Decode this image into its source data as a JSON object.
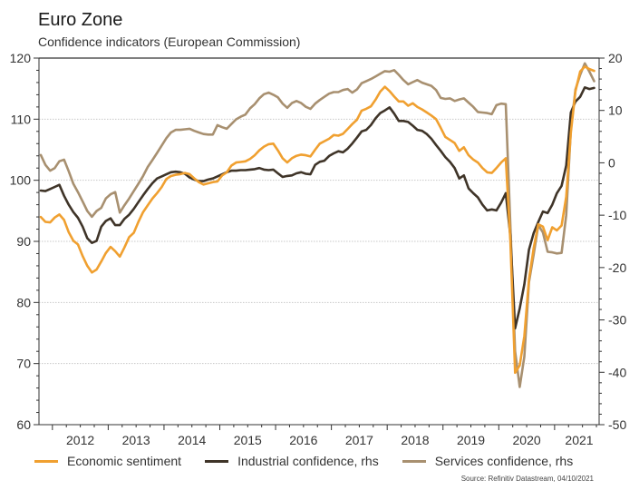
{
  "chart_data": {
    "type": "line",
    "title": "Euro Zone",
    "subtitle": "Confidence indicators (European Commission)",
    "frequency": "monthly",
    "start_month": "2011-10",
    "end_month": "2021-09",
    "x_tick_labels": [
      "2012",
      "2013",
      "2014",
      "2015",
      "2016",
      "2017",
      "2018",
      "2019",
      "2020",
      "2021"
    ],
    "y_left": {
      "ylim": [
        60,
        120
      ],
      "ticks": [
        60,
        70,
        80,
        90,
        100,
        110,
        120
      ]
    },
    "y_right": {
      "ylim": [
        -50,
        20
      ],
      "ticks": [
        -50,
        -40,
        -30,
        -20,
        -10,
        0,
        10,
        20
      ]
    },
    "grid": "horizontal dotted",
    "legend_position": "bottom",
    "source": "Source: Refinitiv Datastream, 04/10/2021",
    "series": [
      {
        "name": "Economic sentiment",
        "axis": "left",
        "color": "#F0A030",
        "values": [
          94.0,
          93.2,
          93.1,
          93.9,
          94.4,
          93.5,
          91.5,
          90.1,
          89.5,
          87.6,
          86.0,
          84.9,
          85.4,
          86.7,
          88.1,
          89.1,
          88.4,
          87.5,
          89.0,
          90.7,
          91.4,
          93.2,
          94.8,
          95.9,
          97.0,
          97.9,
          98.9,
          100.2,
          100.7,
          100.9,
          101.0,
          101.2,
          101.0,
          100.3,
          99.7,
          99.3,
          99.5,
          99.7,
          99.8,
          100.8,
          101.3,
          102.4,
          102.9,
          103.0,
          103.1,
          103.5,
          104.1,
          104.9,
          105.5,
          105.9,
          106.0,
          104.9,
          103.6,
          102.9,
          103.6,
          104.0,
          104.2,
          104.1,
          103.9,
          105.0,
          106.0,
          106.4,
          106.8,
          107.4,
          107.3,
          107.6,
          108.4,
          109.2,
          109.9,
          111.4,
          111.7,
          112.1,
          113.2,
          114.5,
          115.3,
          114.6,
          113.7,
          112.9,
          112.9,
          112.2,
          112.6,
          112.0,
          111.6,
          111.1,
          110.6,
          110.0,
          108.6,
          107.1,
          106.6,
          106.1,
          104.8,
          105.4,
          104.1,
          103.4,
          102.9,
          102.0,
          101.3,
          101.2,
          102.0,
          102.9,
          103.6,
          90.0,
          68.5,
          69.7,
          74.5,
          83.8,
          88.9,
          92.8,
          92.4,
          90.2,
          92.3,
          91.8,
          92.6,
          97.3,
          107.8,
          114.6,
          117.8,
          118.6,
          118.2,
          117.9
        ]
      },
      {
        "name": "Industrial confidence, rhs",
        "axis": "right",
        "color": "#3F3428",
        "values": [
          -5.3,
          -5.4,
          -5.0,
          -4.6,
          -4.2,
          -6.3,
          -8.0,
          -9.4,
          -10.5,
          -12.2,
          -14.4,
          -15.3,
          -14.9,
          -12.2,
          -11.1,
          -10.6,
          -11.9,
          -11.9,
          -10.7,
          -9.9,
          -8.8,
          -7.5,
          -6.2,
          -5.0,
          -3.9,
          -3.0,
          -2.6,
          -2.2,
          -1.8,
          -1.7,
          -1.8,
          -2.1,
          -2.8,
          -3.2,
          -3.5,
          -3.5,
          -3.2,
          -3.0,
          -2.6,
          -2.2,
          -1.8,
          -1.5,
          -1.5,
          -1.4,
          -1.4,
          -1.3,
          -1.2,
          -1.0,
          -1.3,
          -1.4,
          -1.3,
          -2.0,
          -2.7,
          -2.5,
          -2.4,
          -2.0,
          -1.8,
          -2.1,
          -2.2,
          -0.4,
          0.2,
          0.4,
          1.3,
          1.8,
          2.2,
          2.0,
          2.7,
          3.7,
          4.8,
          6.0,
          6.3,
          7.2,
          8.5,
          9.5,
          10.0,
          10.6,
          9.4,
          8.0,
          8.0,
          7.8,
          7.1,
          6.3,
          6.1,
          5.5,
          4.6,
          3.4,
          2.3,
          1.1,
          0.2,
          -1.0,
          -3.0,
          -2.4,
          -4.9,
          -5.8,
          -6.6,
          -8.0,
          -9.1,
          -8.9,
          -9.1,
          -7.6,
          -5.8,
          -14.0,
          -31.6,
          -27.8,
          -23.2,
          -16.6,
          -13.4,
          -11.3,
          -9.3,
          -9.6,
          -8.0,
          -5.8,
          -4.4,
          -0.5,
          9.6,
          11.7,
          12.6,
          14.4,
          14.1,
          14.3
        ]
      },
      {
        "name": "Services confidence, rhs",
        "axis": "right",
        "color": "#A89070",
        "values": [
          1.5,
          -0.4,
          -1.5,
          -1.0,
          0.3,
          0.6,
          -1.6,
          -4.0,
          -5.6,
          -7.4,
          -9.2,
          -10.3,
          -9.2,
          -8.6,
          -6.8,
          -6.0,
          -5.6,
          -9.5,
          -8.1,
          -6.8,
          -5.4,
          -4.0,
          -2.5,
          -0.8,
          0.5,
          1.9,
          3.3,
          4.7,
          5.8,
          6.3,
          6.3,
          6.4,
          6.5,
          6.1,
          5.8,
          5.5,
          5.4,
          5.4,
          7.2,
          6.8,
          6.5,
          7.4,
          8.3,
          8.8,
          9.2,
          10.4,
          11.2,
          12.3,
          13.1,
          13.4,
          13.0,
          12.5,
          11.3,
          10.5,
          11.4,
          11.8,
          11.4,
          10.7,
          10.3,
          11.3,
          12.0,
          12.6,
          13.2,
          13.5,
          13.5,
          13.9,
          14.1,
          13.4,
          14.0,
          15.2,
          15.6,
          16.0,
          16.5,
          17.0,
          17.5,
          17.4,
          17.7,
          16.8,
          15.8,
          15.0,
          15.4,
          15.8,
          15.3,
          15.0,
          14.7,
          13.9,
          12.4,
          12.2,
          12.3,
          11.8,
          12.1,
          12.3,
          11.5,
          10.7,
          9.7,
          9.6,
          9.5,
          9.3,
          11.0,
          11.3,
          11.2,
          -12.0,
          -36.0,
          -42.8,
          -37.0,
          -22.8,
          -17.5,
          -11.9,
          -13.3,
          -17.0,
          -17.1,
          -17.3,
          -17.2,
          -10.0,
          6.3,
          14.0,
          16.8,
          19.0,
          17.4,
          15.6
        ]
      }
    ]
  }
}
